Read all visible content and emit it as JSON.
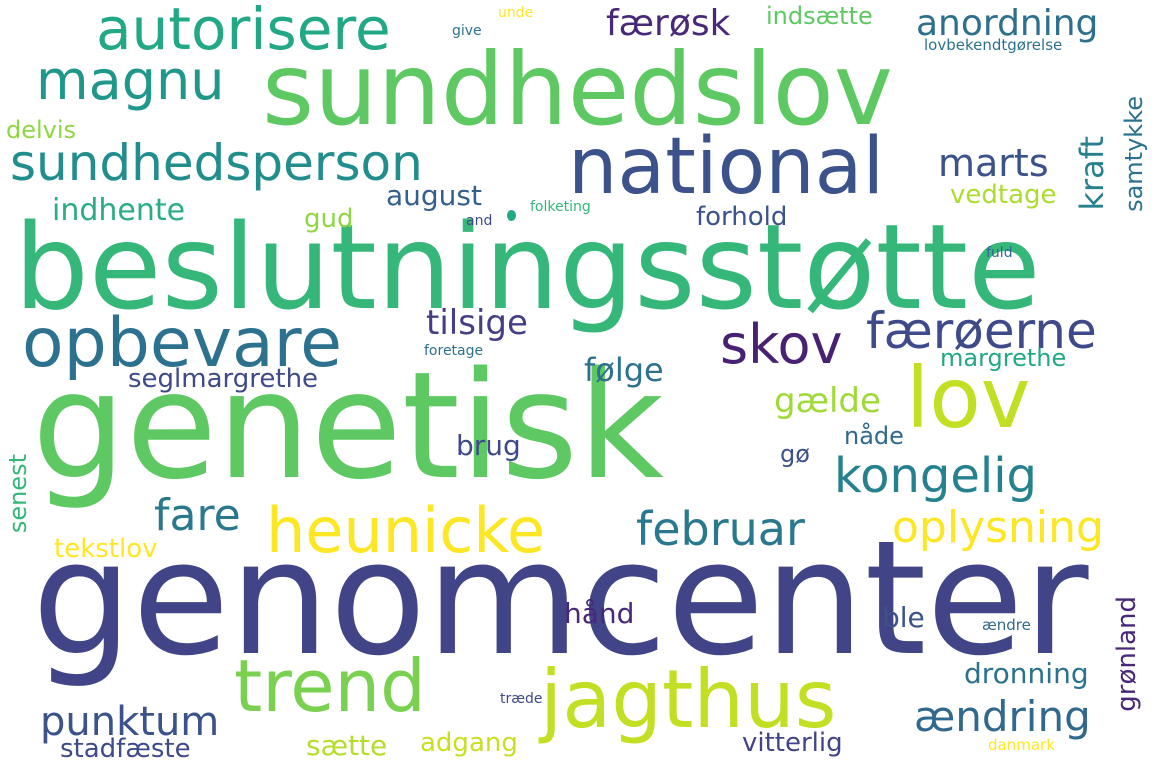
{
  "words": {
    "genomcenter": {
      "text": "genomcenter",
      "color": "#414487"
    },
    "genetisk": {
      "text": "genetisk",
      "color": "#5ec962"
    },
    "beslutning": {
      "text": "beslutningsstøtte",
      "color": "#35b779"
    },
    "sundhedslov": {
      "text": "sundhedslov",
      "color": "#5ec962"
    },
    "national": {
      "text": "national",
      "color": "#3b528b"
    },
    "lov": {
      "text": "lov",
      "color": "#c2df23"
    },
    "jagthus": {
      "text": "jagthus",
      "color": "#c2df23"
    },
    "trend": {
      "text": "trend",
      "color": "#7ad151"
    },
    "opbevare": {
      "text": "opbevare",
      "color": "#2c728e"
    },
    "heunicke": {
      "text": "heunicke",
      "color": "#fde725"
    },
    "autorisere": {
      "text": "autorisere",
      "color": "#22a884"
    },
    "magnu": {
      "text": "magnu",
      "color": "#1f988b"
    },
    "sundhedsperson": {
      "text": "sundhedsperson",
      "color": "#218e8d"
    },
    "skov": {
      "text": "skov",
      "color": "#482173"
    },
    "faeroerne": {
      "text": "færøerne",
      "color": "#3e4a89"
    },
    "kongelig": {
      "text": "kongelig",
      "color": "#26818e"
    },
    "februar": {
      "text": "februar",
      "color": "#2a788e"
    },
    "oplysning": {
      "text": "oplysning",
      "color": "#fde725"
    },
    "fare": {
      "text": "fare",
      "color": "#2a788e"
    },
    "punktum": {
      "text": "punktum",
      "color": "#3b528b"
    },
    "aendring": {
      "text": "ændring",
      "color": "#31688e"
    },
    "anordning": {
      "text": "anordning",
      "color": "#2d708e"
    },
    "faerosk": {
      "text": "færøsk",
      "color": "#482878"
    },
    "marts": {
      "text": "marts",
      "color": "#3b528b"
    },
    "tilsige": {
      "text": "tilsige",
      "color": "#433e85"
    },
    "indhente": {
      "text": "indhente",
      "color": "#29af7f"
    },
    "august": {
      "text": "august",
      "color": "#355f8d"
    },
    "gud": {
      "text": "gud",
      "color": "#8fd744"
    },
    "forhold": {
      "text": "forhold",
      "color": "#3b528b"
    },
    "vedtage": {
      "text": "vedtage",
      "color": "#addc30"
    },
    "seglmargrethe": {
      "text": "seglmargrethe",
      "color": "#3e4a89"
    },
    "folge": {
      "text": "følge",
      "color": "#2c728e"
    },
    "gaelde": {
      "text": "gælde",
      "color": "#a0da39"
    },
    "margrethe": {
      "text": "margrethe",
      "color": "#22a884"
    },
    "brug": {
      "text": "brug",
      "color": "#3e4a89"
    },
    "naade": {
      "text": "nåde",
      "color": "#31688e"
    },
    "go": {
      "text": "gø",
      "color": "#3b528b"
    },
    "tekstlov": {
      "text": "tekstlov",
      "color": "#fde725"
    },
    "haand": {
      "text": "hånd",
      "color": "#482878"
    },
    "ble": {
      "text": "ble",
      "color": "#3b528b"
    },
    "dronning": {
      "text": "dronning",
      "color": "#2c728e"
    },
    "saette": {
      "text": "sætte",
      "color": "#b5de2b"
    },
    "adgang": {
      "text": "adgang",
      "color": "#c8e020"
    },
    "vitterlig": {
      "text": "vitterlig",
      "color": "#414487"
    },
    "stadfaeste": {
      "text": "stadfæste",
      "color": "#3e4a89"
    },
    "indsaette": {
      "text": "indsætte",
      "color": "#5ec962"
    },
    "delvis": {
      "text": "delvis",
      "color": "#8fd744"
    },
    "give": {
      "text": "give",
      "color": "#2c728e"
    },
    "unde": {
      "text": "unde",
      "color": "#fde725"
    },
    "lovbek": {
      "text": "lovbekendtgørelse",
      "color": "#2c728e"
    },
    "and": {
      "text": "and",
      "color": "#3e4a89"
    },
    "folketing": {
      "text": "folketing",
      "color": "#35b779"
    },
    "fuld": {
      "text": "fuld",
      "color": "#31688e"
    },
    "foretage": {
      "text": "foretage",
      "color": "#2c728e"
    },
    "aendre": {
      "text": "ændre",
      "color": "#31688e"
    },
    "traede": {
      "text": "træde",
      "color": "#3e4a89"
    },
    "danmark": {
      "text": "danmark",
      "color": "#fde725"
    },
    "kraft": {
      "text": "kraft",
      "color": "#26818e"
    },
    "samtykke": {
      "text": "samtykke",
      "color": "#2c728e"
    },
    "senest": {
      "text": "senest",
      "color": "#35b779"
    },
    "gronland": {
      "text": "grønland",
      "color": "#482878"
    }
  },
  "dot_color": "#22a884"
}
